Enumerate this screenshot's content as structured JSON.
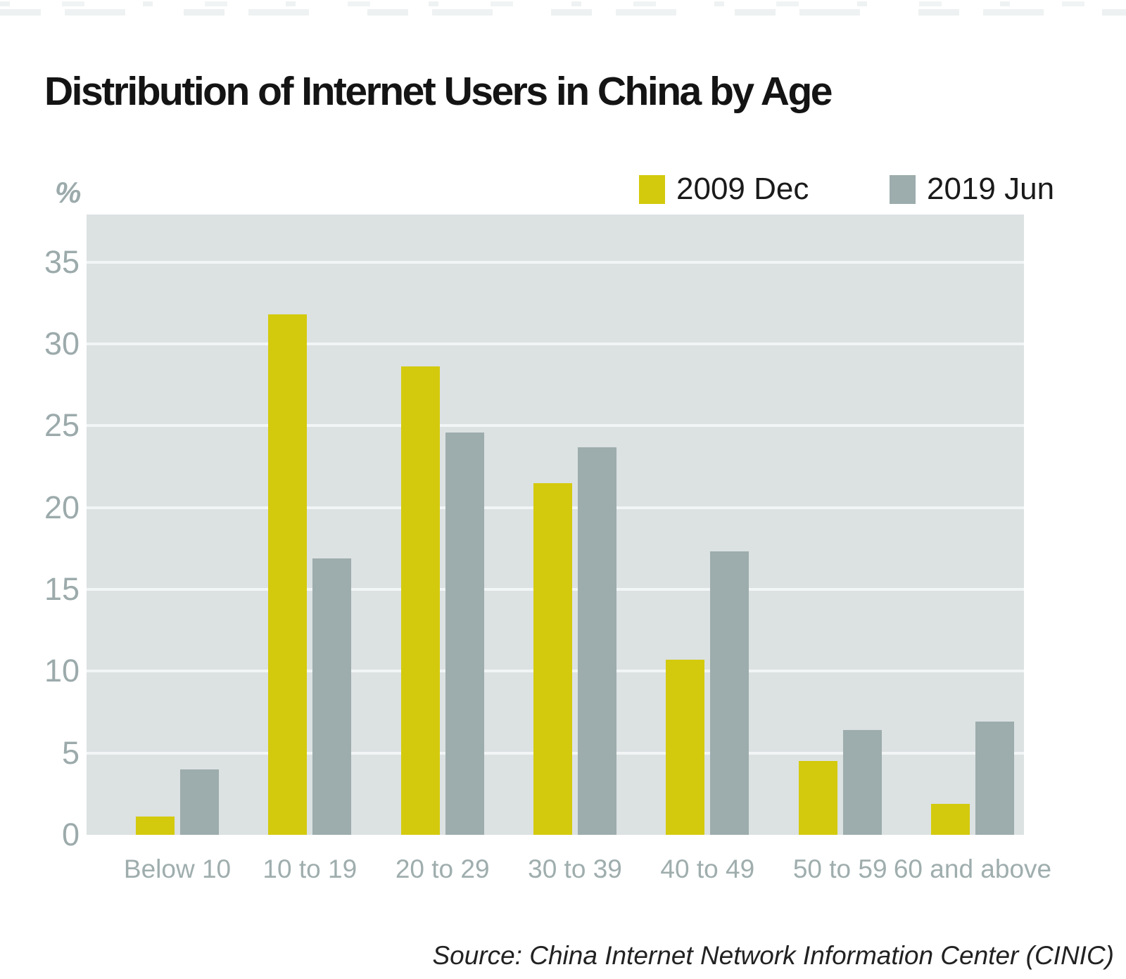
{
  "chart_data": {
    "type": "bar",
    "title": "Distribution of Internet Users in China by Age",
    "ylabel": "%",
    "xlabel": "",
    "categories": [
      "Below 10",
      "10 to 19",
      "20 to 29",
      "30 to 39",
      "40 to 49",
      "50 to 59",
      "60 and above"
    ],
    "series": [
      {
        "name": "2009 Dec",
        "color": "#d3ca0d",
        "values": [
          1.1,
          31.8,
          28.6,
          21.5,
          10.7,
          4.5,
          1.9
        ]
      },
      {
        "name": "2019 Jun",
        "color": "#9dacac",
        "values": [
          4.0,
          16.9,
          24.6,
          23.7,
          17.3,
          6.4,
          6.9
        ]
      }
    ],
    "yticks": [
      0,
      5,
      10,
      15,
      20,
      25,
      30,
      35
    ],
    "ylim": [
      0,
      37.9
    ],
    "grid": true,
    "legend_position": "top-right",
    "plot_background": "#dce1e2",
    "gridline_color": "#f2f5f5",
    "axis_label_color": "#9caaab",
    "source": "Source: China Internet Network Information Center (CINIC)"
  }
}
